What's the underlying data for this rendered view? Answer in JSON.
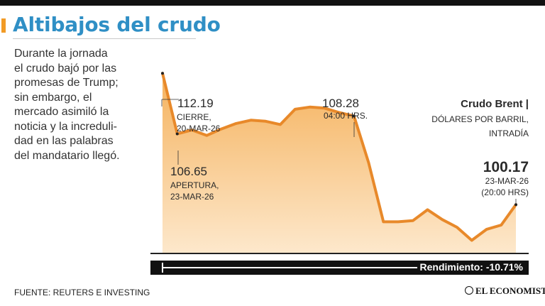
{
  "header": {
    "title": "Altibajos del crudo"
  },
  "description_lines": [
    "Durante la jornada",
    "el crudo bajó por las",
    "promesas de Trump;",
    "sin embargo, el",
    "mercado asimiló la",
    "noticia y la increduli-",
    "dad en las palabras",
    "del mandatario llegó."
  ],
  "legend": {
    "series_name": "Crudo Brent |",
    "unit": "DÓLARES POR BARRIL,",
    "frequency": "INTRADÍA"
  },
  "annotations": {
    "close": {
      "value": "112.19",
      "line1": "CIERRE,",
      "line2": "20-MAR-26"
    },
    "open": {
      "value": "106.65",
      "line1": "APERTURA,",
      "line2": "23-MAR-26"
    },
    "peak": {
      "value": "108.28",
      "line1": "04:00 HRS."
    },
    "last": {
      "value": "100.17",
      "line1": "23-MAR-26",
      "line2": "(20:00 HRS)"
    }
  },
  "footer": {
    "performance": "Rendimiento: -10.71%",
    "source": "FUENTE: REUTERS E INVESTING",
    "brand": "EL ECONOMISTA"
  },
  "colors": {
    "line": "#e8892a",
    "area_top": "#f5b25d",
    "area_bottom": "#fde8cc",
    "title": "#2f8fc5"
  },
  "chart_data": {
    "type": "area",
    "title": "Crudo Brent",
    "ylabel": "DÓLARES POR BARRIL",
    "x": [
      0,
      1,
      2,
      3,
      4,
      5,
      6,
      7,
      8,
      9,
      10,
      11,
      12,
      13,
      14,
      15,
      16,
      17,
      18,
      19,
      20,
      21,
      22,
      23,
      24
    ],
    "values": [
      112.19,
      106.65,
      107.0,
      106.5,
      107.1,
      107.6,
      107.9,
      107.8,
      107.5,
      108.9,
      109.1,
      109.0,
      108.6,
      108.28,
      104.0,
      98.6,
      98.6,
      98.7,
      99.7,
      98.8,
      98.1,
      96.9,
      97.9,
      98.3,
      100.17
    ],
    "ylim": [
      95.7,
      115
    ],
    "grid": false,
    "series": [
      {
        "name": "Crudo Brent",
        "values": [
          112.19,
          106.65,
          107.0,
          106.5,
          107.1,
          107.6,
          107.9,
          107.8,
          107.5,
          108.9,
          109.1,
          109.0,
          108.6,
          108.28,
          104.0,
          98.6,
          98.6,
          98.7,
          99.7,
          98.8,
          98.1,
          96.9,
          97.9,
          98.3,
          100.17
        ]
      }
    ]
  }
}
